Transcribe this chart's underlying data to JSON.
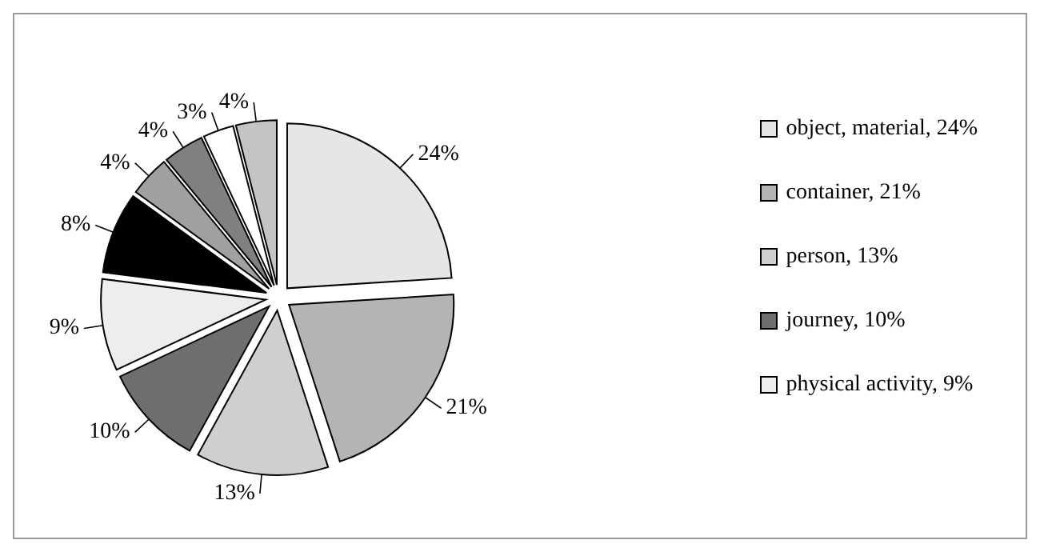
{
  "chart_data": {
    "type": "pie",
    "categories": [
      "object, material, 24%",
      "container, 21%",
      "person, 13%",
      "journey, 10%",
      "physical activity, 9%",
      null,
      null,
      null,
      null,
      null
    ],
    "values": [
      24,
      21,
      13,
      10,
      9,
      8,
      4,
      4,
      3,
      4
    ],
    "value_labels": [
      "24%",
      "21%",
      "13%",
      "10%",
      "9%",
      "8%",
      "4%",
      "4%",
      "3%",
      "4%"
    ],
    "colors": [
      "#e6e6e6",
      "#b4b4b4",
      "#cfcfcf",
      "#6e6e6e",
      "#ededed",
      "#000000",
      "#a0a0a0",
      "#808080",
      "#ffffff",
      "#c4c4c4"
    ],
    "legend": "right"
  }
}
